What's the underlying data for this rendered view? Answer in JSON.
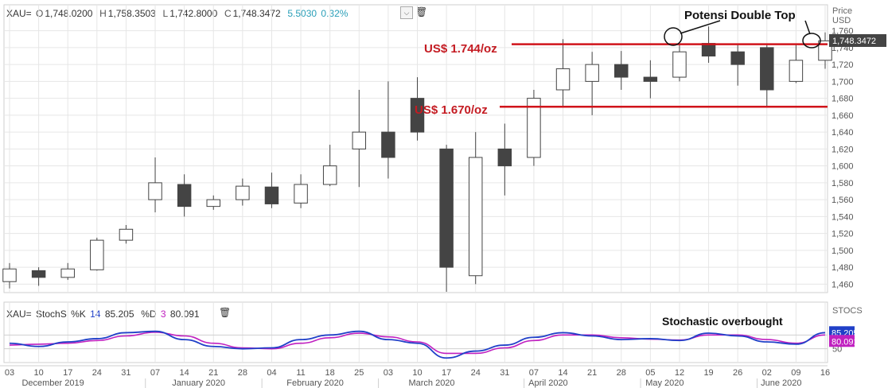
{
  "header": {
    "symbol": "XAU=",
    "open_label": "O",
    "open": "1,748.0200",
    "high_label": "H",
    "high": "1,758.3503",
    "low_label": "L",
    "low": "1,742.8000",
    "close_label": "C",
    "close": "1,748.3472",
    "change": "5.5030",
    "change_pct": "0.32%"
  },
  "price_axis": {
    "title_line1": "Price",
    "title_line2": "USD",
    "last_price_tag": "1,748.3472"
  },
  "stoch_header": {
    "symbol": "XAU=",
    "name": "StochS",
    "k_label": "%K",
    "k_period": "14",
    "k_value": "85.205",
    "d_label": "%D",
    "d_period": "3",
    "d_value": "80.091"
  },
  "stoch_axis": {
    "title": "STOCS",
    "k_tag": "85.205",
    "d_tag": "80.091"
  },
  "annotations": {
    "double_top": "Potensi Double Top",
    "resistance": "US$ 1.744/oz",
    "support": "US$ 1.670/oz",
    "stochastic": "Stochastic overbought"
  },
  "x_day_ticks": [
    "03",
    "10",
    "17",
    "24",
    "31",
    "07",
    "14",
    "21",
    "28",
    "04",
    "11",
    "18",
    "25",
    "03",
    "10",
    "17",
    "24",
    "31",
    "07",
    "14",
    "21",
    "28",
    "05",
    "12",
    "19",
    "26",
    "02",
    "09",
    "16"
  ],
  "x_month_labels": [
    "December 2019",
    "January 2020",
    "February 2020",
    "March 2020",
    "April 2020",
    "May 2020",
    "June 2020"
  ],
  "colors": {
    "up": "#ffffff",
    "down": "#444444",
    "level_line": "#d0141b",
    "k_line": "#2040c8",
    "d_line": "#c020c0",
    "annotation_text": "#c41b22"
  },
  "chart_data": {
    "type": "candlestick",
    "title": "",
    "ylim": [
      1450,
      1770
    ],
    "yticks": [
      1460,
      1480,
      1500,
      1520,
      1540,
      1560,
      1580,
      1600,
      1620,
      1640,
      1660,
      1680,
      1700,
      1720,
      1740,
      1760
    ],
    "levels": [
      1744,
      1670
    ],
    "ohlc_weekly": [
      {
        "week": "Dec 03",
        "o": 1463,
        "h": 1485,
        "l": 1455,
        "c": 1478
      },
      {
        "week": "Dec 10",
        "o": 1476,
        "h": 1480,
        "l": 1458,
        "c": 1468
      },
      {
        "week": "Dec 17",
        "o": 1468,
        "h": 1485,
        "l": 1465,
        "c": 1478
      },
      {
        "week": "Dec 24",
        "o": 1477,
        "h": 1515,
        "l": 1476,
        "c": 1512
      },
      {
        "week": "Dec 31",
        "o": 1512,
        "h": 1530,
        "l": 1508,
        "c": 1525
      },
      {
        "week": "Jan 07",
        "o": 1560,
        "h": 1610,
        "l": 1545,
        "c": 1580
      },
      {
        "week": "Jan 14",
        "o": 1578,
        "h": 1590,
        "l": 1540,
        "c": 1552
      },
      {
        "week": "Jan 21",
        "o": 1552,
        "h": 1565,
        "l": 1548,
        "c": 1560
      },
      {
        "week": "Jan 28",
        "o": 1560,
        "h": 1585,
        "l": 1553,
        "c": 1576
      },
      {
        "week": "Feb 04",
        "o": 1575,
        "h": 1592,
        "l": 1550,
        "c": 1555
      },
      {
        "week": "Feb 11",
        "o": 1556,
        "h": 1590,
        "l": 1550,
        "c": 1578
      },
      {
        "week": "Feb 18",
        "o": 1578,
        "h": 1625,
        "l": 1576,
        "c": 1600
      },
      {
        "week": "Feb 25",
        "o": 1620,
        "h": 1690,
        "l": 1575,
        "c": 1640
      },
      {
        "week": "Mar 03",
        "o": 1640,
        "h": 1700,
        "l": 1585,
        "c": 1610
      },
      {
        "week": "Mar 10",
        "o": 1680,
        "h": 1705,
        "l": 1630,
        "c": 1640
      },
      {
        "week": "Mar 17",
        "o": 1620,
        "h": 1625,
        "l": 1451,
        "c": 1480
      },
      {
        "week": "Mar 24",
        "o": 1470,
        "h": 1640,
        "l": 1460,
        "c": 1610
      },
      {
        "week": "Mar 31",
        "o": 1620,
        "h": 1650,
        "l": 1565,
        "c": 1600
      },
      {
        "week": "Apr 07",
        "o": 1610,
        "h": 1690,
        "l": 1600,
        "c": 1680
      },
      {
        "week": "Apr 14",
        "o": 1690,
        "h": 1750,
        "l": 1670,
        "c": 1715
      },
      {
        "week": "Apr 21",
        "o": 1700,
        "h": 1735,
        "l": 1660,
        "c": 1720
      },
      {
        "week": "Apr 28",
        "o": 1720,
        "h": 1736,
        "l": 1690,
        "c": 1705
      },
      {
        "week": "May 05",
        "o": 1705,
        "h": 1725,
        "l": 1680,
        "c": 1700
      },
      {
        "week": "May 12",
        "o": 1705,
        "h": 1745,
        "l": 1700,
        "c": 1735
      },
      {
        "week": "May 19",
        "o": 1745,
        "h": 1765,
        "l": 1722,
        "c": 1730
      },
      {
        "week": "May 26",
        "o": 1735,
        "h": 1745,
        "l": 1695,
        "c": 1720
      },
      {
        "week": "Jun 02",
        "o": 1740,
        "h": 1745,
        "l": 1670,
        "c": 1690
      },
      {
        "week": "Jun 09",
        "o": 1700,
        "h": 1745,
        "l": 1698,
        "c": 1725
      },
      {
        "week": "Jun 16",
        "o": 1725,
        "h": 1758,
        "l": 1715,
        "c": 1748
      }
    ],
    "stochastic": {
      "ylim": [
        20,
        110
      ],
      "yticks": [
        50,
        80
      ],
      "k": [
        62,
        55,
        65,
        72,
        85,
        88,
        70,
        55,
        50,
        52,
        70,
        80,
        88,
        70,
        62,
        30,
        45,
        58,
        75,
        85,
        78,
        70,
        72,
        68,
        84,
        78,
        65,
        60,
        85
      ],
      "d": [
        58,
        60,
        62,
        68,
        78,
        86,
        78,
        62,
        52,
        50,
        62,
        74,
        84,
        76,
        65,
        40,
        40,
        52,
        68,
        80,
        80,
        74,
        71,
        69,
        80,
        80,
        70,
        62,
        80
      ]
    }
  }
}
